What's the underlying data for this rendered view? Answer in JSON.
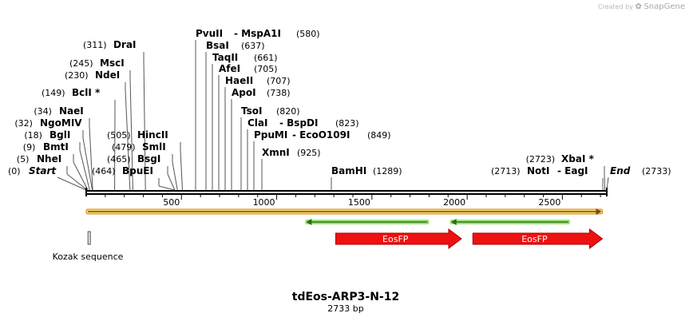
{
  "credit": {
    "prefix": "Created by",
    "brand": "SnapGene"
  },
  "title": "tdEos-ARP3-N-12",
  "subtitle": "2733 bp",
  "sequence_length": 2733,
  "ruler": {
    "ticks": [
      "500",
      "1000",
      "1500",
      "2000",
      "2500"
    ]
  },
  "terminals": [
    {
      "label": "Start",
      "pos_text": "(0)",
      "pos": 0
    },
    {
      "label": "End",
      "pos_text": "(2733)",
      "pos": 2733
    }
  ],
  "sites": [
    {
      "id": "nhei",
      "pos": 5,
      "pos_text": "(5)",
      "name": "NheI"
    },
    {
      "id": "bmti",
      "pos": 9,
      "pos_text": "(9)",
      "name": "BmtI"
    },
    {
      "id": "bgli",
      "pos": 18,
      "pos_text": "(18)",
      "name": "BglI"
    },
    {
      "id": "ngomiv",
      "pos": 32,
      "pos_text": "(32)",
      "name": "NgoMIV"
    },
    {
      "id": "naei",
      "pos": 34,
      "pos_text": "(34)",
      "name": "NaeI"
    },
    {
      "id": "bcli",
      "pos": 149,
      "pos_text": "(149)",
      "name": "BclI *"
    },
    {
      "id": "ndei",
      "pos": 230,
      "pos_text": "(230)",
      "name": "NdeI"
    },
    {
      "id": "msci",
      "pos": 245,
      "pos_text": "(245)",
      "name": "MscI"
    },
    {
      "id": "drai",
      "pos": 311,
      "pos_text": "(311)",
      "name": "DraI"
    },
    {
      "id": "bpuei",
      "pos": 464,
      "pos_text": "(464)",
      "name": "BpuEI"
    },
    {
      "id": "bsgi",
      "pos": 465,
      "pos_text": "(465)",
      "name": "BsgI"
    },
    {
      "id": "smli",
      "pos": 479,
      "pos_text": "(479)",
      "name": "SmlI"
    },
    {
      "id": "hincii",
      "pos": 505,
      "pos_text": "(505)",
      "name": "HincII"
    },
    {
      "id": "pvuii",
      "pos": 580,
      "pos_text": "(580)",
      "name": "PvuII",
      "name2": "MspA1I"
    },
    {
      "id": "bsai",
      "pos": 637,
      "pos_text": "(637)",
      "name": "BsaI"
    },
    {
      "id": "taqii",
      "pos": 661,
      "pos_text": "(661)",
      "name": "TaqII"
    },
    {
      "id": "afei",
      "pos": 705,
      "pos_text": "(705)",
      "name": "AfeI"
    },
    {
      "id": "haeii",
      "pos": 707,
      "pos_text": "(707)",
      "name": "HaeII"
    },
    {
      "id": "apoi",
      "pos": 738,
      "pos_text": "(738)",
      "name": "ApoI"
    },
    {
      "id": "tsoi",
      "pos": 820,
      "pos_text": "(820)",
      "name": "TsoI"
    },
    {
      "id": "clai",
      "pos": 823,
      "pos_text": "(823)",
      "name": "ClaI",
      "name2": "BspDI"
    },
    {
      "id": "ppumi",
      "pos": 849,
      "pos_text": "(849)",
      "name": "PpuMI",
      "name2": "EcoO109I"
    },
    {
      "id": "xmni",
      "pos": 925,
      "pos_text": "(925)",
      "name": "XmnI"
    },
    {
      "id": "bamhi",
      "pos": 1289,
      "pos_text": "(1289)",
      "name": "BamHI"
    },
    {
      "id": "noti",
      "pos": 2713,
      "pos_text": "(2713)",
      "name": "NotI",
      "name2": "EagI"
    },
    {
      "id": "xbai",
      "pos": 2723,
      "pos_text": "(2723)",
      "name": "XbaI *"
    }
  ],
  "features": [
    {
      "id": "kozak",
      "label": "Kozak sequence",
      "start": 5,
      "end": 15,
      "type": "misc"
    },
    {
      "id": "eosfp-1",
      "label": "EosFP",
      "start": 1310,
      "end": 1970,
      "type": "cds"
    },
    {
      "id": "eosfp-2",
      "label": "EosFP",
      "start": 2030,
      "end": 2710,
      "type": "cds"
    },
    {
      "id": "orf-long",
      "start": 0,
      "end": 2710,
      "type": "orf"
    },
    {
      "id": "orf-rev-1",
      "start": 1150,
      "end": 1800,
      "type": "orf-rev"
    },
    {
      "id": "orf-rev-2",
      "start": 1910,
      "end": 2540,
      "type": "orf-rev"
    }
  ],
  "colors": {
    "cds": "#ee1111",
    "cds_stroke": "#a80000",
    "orf_fill": "#ffd966",
    "orf_outline": "#cf8a1a",
    "orf_rev_fill": "#9fe37a",
    "orf_rev_arrow": "#2a6e1a",
    "backbone": "#000000"
  }
}
